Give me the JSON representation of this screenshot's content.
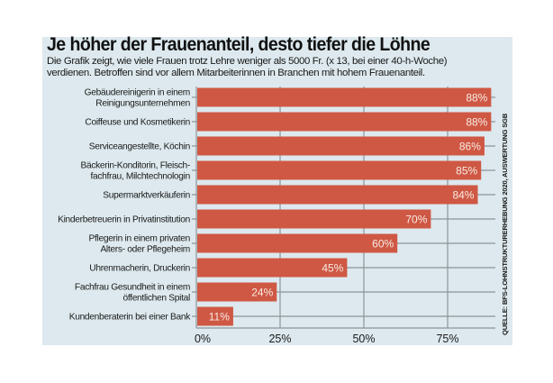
{
  "title": "Je höher der Frauenanteil, desto tiefer die Löhne",
  "subtitle_lines": [
    "Die Grafik zeigt, wie viele Frauen trotz Lehre weniger als 5000 Fr. (x 13, bei einer 40-h-Woche)",
    "verdienen. Betroffen sind vor allem Mitarbeiterinnen in Branchen mit hohem Frauenanteil."
  ],
  "source": "QUELLE: BFS-LOHNSTRUKTURERHEBUNG 2020, AUSWERTUNG SGB",
  "colors": {
    "bar": "#cf5844",
    "background": "#dde9ee",
    "grid": "#8d9497"
  },
  "chart_data": {
    "type": "bar",
    "orientation": "horizontal",
    "title": "Je höher der Frauenanteil, desto tiefer die Löhne",
    "xlabel": "",
    "ylabel": "",
    "xlim": [
      0,
      90
    ],
    "x_ticks": [
      0,
      25,
      50,
      75
    ],
    "x_tick_labels": [
      "0%",
      "25%",
      "50%",
      "75%"
    ],
    "grid": true,
    "categories": [
      [
        "Gebäudereinigerin in einem",
        "Reinigungsunternehmen"
      ],
      [
        "Coiffeuse und Kosmetikerin"
      ],
      [
        "Serviceangestellte, Köchin"
      ],
      [
        "Bäckerin-Konditorin, Fleisch-",
        "fachfrau, Milchtechnologin"
      ],
      [
        "Supermarktverkäuferin"
      ],
      [
        "Kinderbetreuerin in Privatinstitution"
      ],
      [
        "Pflegerin in einem privaten",
        "Alters- oder Pflegeheim"
      ],
      [
        "Uhrenmacherin, Druckerin"
      ],
      [
        "Fachfrau Gesundheit in einem",
        "öffentlichen Spital"
      ],
      [
        "Kundenberaterin bei einer Bank"
      ]
    ],
    "values": [
      88,
      88,
      86,
      85,
      84,
      70,
      60,
      45,
      24,
      11
    ],
    "value_labels": [
      "88%",
      "88%",
      "86%",
      "85%",
      "84%",
      "70%",
      "60%",
      "45%",
      "24%",
      "11%"
    ]
  }
}
